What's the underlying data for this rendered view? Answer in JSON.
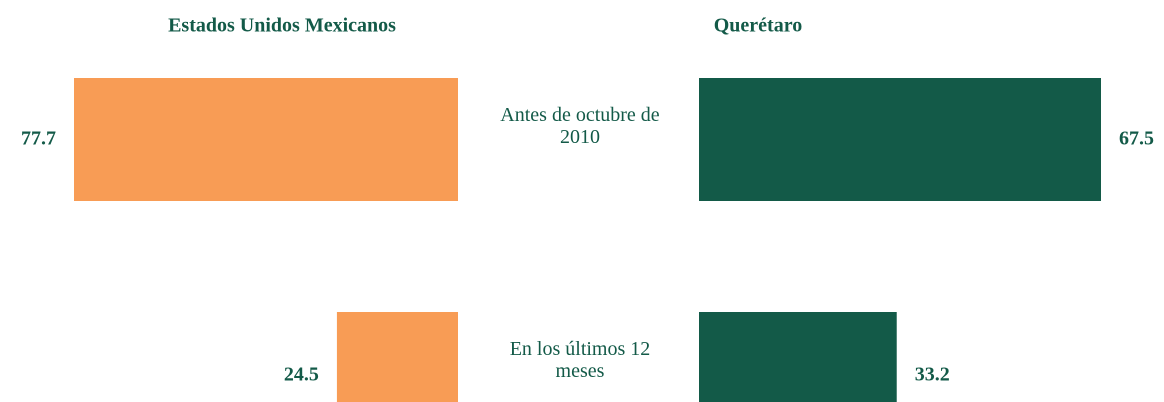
{
  "chart_data": [
    {
      "type": "bar",
      "title": "Estados Unidos Mexicanos",
      "categories": [
        "Antes de octubre de 2010",
        "En los últimos 12 meses"
      ],
      "values": [
        77.7,
        24.5
      ],
      "color": "#f89c55"
    },
    {
      "type": "bar",
      "title": "Querétaro",
      "values": [
        67.5,
        33.2
      ],
      "color": "#135a48"
    }
  ]
}
